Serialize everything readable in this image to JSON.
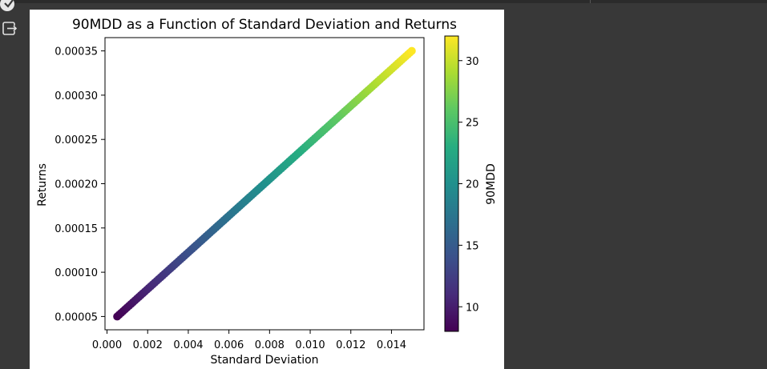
{
  "toolbar": {
    "run_icon": "run-icon",
    "output_icon": "exit-output-icon"
  },
  "chart_data": {
    "type": "scatter",
    "title": "90MDD as a Function of Standard Deviation and Returns",
    "xlabel": "Standard Deviation",
    "ylabel": "Returns",
    "xlim": [
      -0.0001,
      0.0156
    ],
    "ylim": [
      3.5e-05,
      0.000365
    ],
    "x_ticks": [
      0.0,
      0.002,
      0.004,
      0.006,
      0.008,
      0.01,
      0.012,
      0.014
    ],
    "x_tick_labels": [
      "0.000",
      "0.002",
      "0.004",
      "0.006",
      "0.008",
      "0.010",
      "0.012",
      "0.014"
    ],
    "y_ticks": [
      5e-05,
      0.0001,
      0.00015,
      0.0002,
      0.00025,
      0.0003,
      0.00035
    ],
    "y_tick_labels": [
      "0.00005",
      "0.00010",
      "0.00015",
      "0.00020",
      "0.00025",
      "0.00030",
      "0.00035"
    ],
    "x_range": [
      0.0005,
      0.015
    ],
    "y_range": [
      5e-05,
      0.00035
    ],
    "color_range": [
      8,
      32
    ],
    "n_points": 150,
    "colormap": "viridis",
    "colorbar": {
      "label": "90MDD",
      "min": 8,
      "max": 32,
      "ticks": [
        10,
        15,
        20,
        25,
        30
      ],
      "tick_labels": [
        "10",
        "15",
        "20",
        "25",
        "30"
      ]
    },
    "grid": false,
    "legend": "none"
  }
}
